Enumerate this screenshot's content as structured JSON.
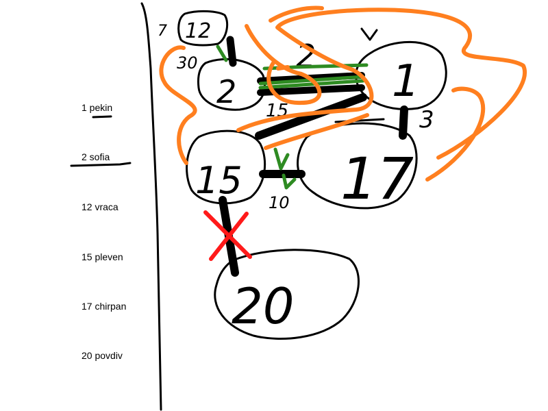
{
  "legend": {
    "items": [
      {
        "label": "1 pekin"
      },
      {
        "label": "2 sofia"
      },
      {
        "label": "12 vraca"
      },
      {
        "label": "15 pleven"
      },
      {
        "label": "17 chirpan"
      },
      {
        "label": "20 povdiv"
      }
    ]
  },
  "graph": {
    "nodes": [
      {
        "id": "12",
        "label": "12"
      },
      {
        "id": "2",
        "label": "2"
      },
      {
        "id": "1",
        "label": "1"
      },
      {
        "id": "15",
        "label": "15"
      },
      {
        "id": "17",
        "label": "17"
      },
      {
        "id": "20",
        "label": "20"
      }
    ],
    "edge_labels": [
      {
        "label": "30"
      },
      {
        "label": "2"
      },
      {
        "label": "15"
      },
      {
        "label": "3"
      },
      {
        "label": "10"
      },
      {
        "label": "7"
      }
    ]
  },
  "colors": {
    "ink": "#000000",
    "route_orange": "#ff7f1f",
    "route_green": "#2e8b22",
    "cross_red": "#ff1a1a"
  }
}
